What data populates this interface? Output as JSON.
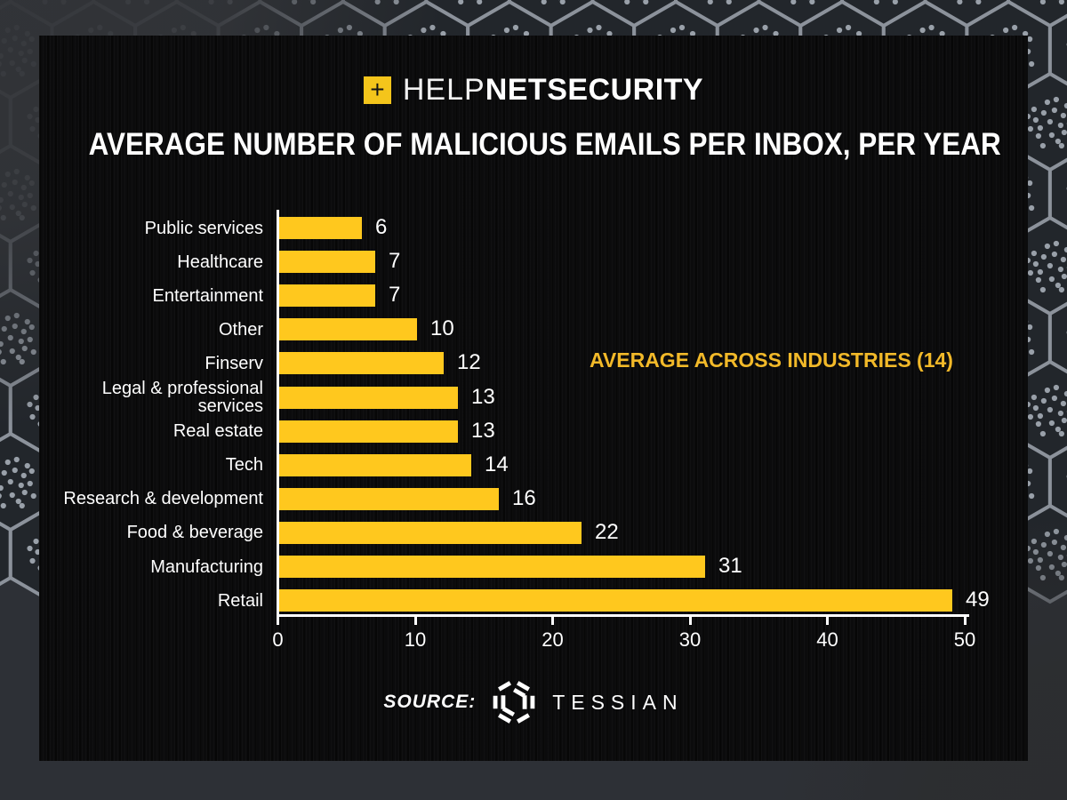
{
  "brand": {
    "plus_icon": "+",
    "help": "HELP",
    "net": "NET",
    "security": "SECURITY"
  },
  "title": "AVERAGE NUMBER OF MALICIOUS EMAILS PER INBOX, PER YEAR",
  "chart_data": {
    "type": "bar",
    "orientation": "horizontal",
    "title": "AVERAGE NUMBER OF MALICIOUS EMAILS PER INBOX, PER YEAR",
    "categories": [
      "Public services",
      "Healthcare",
      "Entertainment",
      "Other",
      "Finserv",
      "Legal & professional services",
      "Real estate",
      "Tech",
      "Research & development",
      "Food & beverage",
      "Manufacturing",
      "Retail"
    ],
    "values": [
      6,
      7,
      7,
      10,
      12,
      13,
      13,
      14,
      16,
      22,
      31,
      49
    ],
    "xlim": [
      0,
      50
    ],
    "xticks": [
      0,
      10,
      20,
      30,
      40,
      50
    ],
    "grid": false,
    "value_labels": true,
    "annotation": "AVERAGE ACROSS INDUSTRIES (14)",
    "average_across_industries": 14,
    "bar_color": "#FFC81E",
    "legend": "none"
  },
  "source": {
    "label": "SOURCE:",
    "name": "TESSIAN",
    "logo": "tessian-hexagon-logo"
  },
  "colors": {
    "bar_yellow": "#FFC81E",
    "logo_yellow": "#F4C51B",
    "annotation_yellow": "#F2B929",
    "card_background": "#0B0B0C",
    "outer_background": "#34373C",
    "axis_and_text": "#FFFFFF"
  }
}
